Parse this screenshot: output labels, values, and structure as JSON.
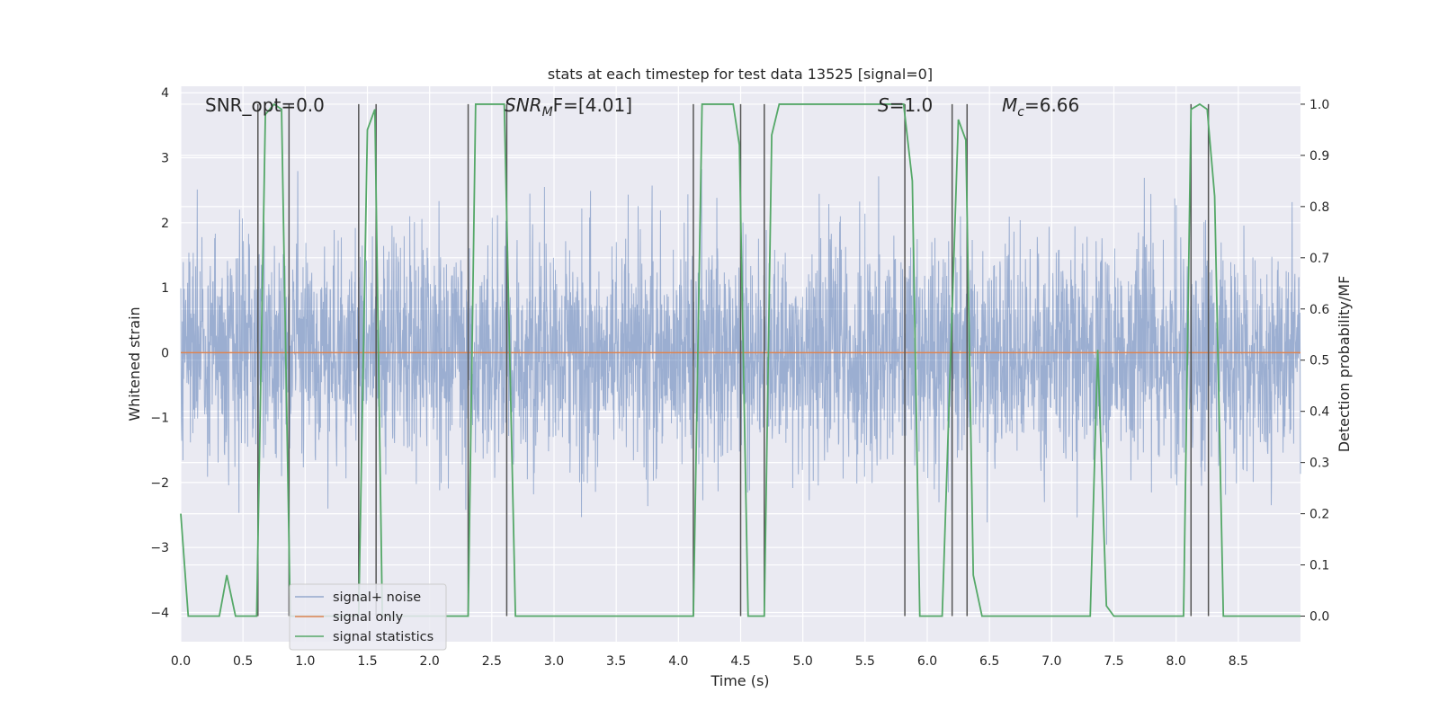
{
  "chart_data": {
    "type": "line",
    "title": "stats at each timestep for test data 13525 [signal=0]",
    "xlabel": "Time (s)",
    "ylabel": "Whitened strain",
    "y2label": "Detection probability/MF",
    "xlim": [
      0,
      9.0
    ],
    "ylim": [
      -4.45,
      4.1
    ],
    "y2lim": [
      -0.05,
      1.035
    ],
    "x_ticks": [
      0.0,
      0.5,
      1.0,
      1.5,
      2.0,
      2.5,
      3.0,
      3.5,
      4.0,
      4.5,
      5.0,
      5.5,
      6.0,
      6.5,
      7.0,
      7.5,
      8.0,
      8.5
    ],
    "x_tick_labels": [
      "0.0",
      "0.5",
      "1.0",
      "1.5",
      "2.0",
      "2.5",
      "3.0",
      "3.5",
      "4.0",
      "4.5",
      "5.0",
      "5.5",
      "6.0",
      "6.5",
      "7.0",
      "7.5",
      "8.0",
      "8.5"
    ],
    "y_ticks": [
      4,
      3,
      2,
      1,
      0,
      -1,
      -2,
      -3,
      -4
    ],
    "y_tick_labels": [
      "4",
      "3",
      "2",
      "1",
      "0",
      "−1",
      "−2",
      "−3",
      "−4"
    ],
    "y2_ticks": [
      1.0,
      0.9,
      0.8,
      0.7,
      0.6,
      0.5,
      0.4,
      0.3,
      0.2,
      0.1,
      0.0
    ],
    "y2_tick_labels": [
      "1.0",
      "0.9",
      "0.8",
      "0.7",
      "0.6",
      "0.5",
      "0.4",
      "0.3",
      "0.2",
      "0.1",
      "0.0"
    ],
    "annotations": {
      "snr_opt": "SNR_opt=0.0",
      "snr_mf_base": "SNR",
      "snr_mf_sub": "M",
      "snr_mf_rest": "F=[4.01]",
      "s_label": "S",
      "s_value": "=1.0",
      "mc_base": "M",
      "mc_sub": "c",
      "mc_value": "=6.66"
    },
    "noise_series": {
      "name": "signal+ noise",
      "color": "#4c72b0",
      "sigma": 0.85,
      "n_samples": 3600,
      "seed": 13525
    },
    "signal_series": {
      "name": "signal only",
      "color": "#dd8452",
      "value": 0.0
    },
    "stats_series": {
      "name": "signal statistics",
      "color": "#55a868",
      "x": [
        0.0,
        0.06,
        0.31,
        0.37,
        0.44,
        0.61,
        0.68,
        0.75,
        0.81,
        0.88,
        0.91,
        1.43,
        1.5,
        1.56,
        1.62,
        2.31,
        2.37,
        2.6,
        2.69,
        2.75,
        4.06,
        4.12,
        4.19,
        4.44,
        4.49,
        4.56,
        4.69,
        4.75,
        4.81,
        5.81,
        5.88,
        5.94,
        6.12,
        6.25,
        6.31,
        6.37,
        6.44,
        7.31,
        7.37,
        7.44,
        7.5,
        8.06,
        8.12,
        8.19,
        8.25,
        8.31,
        8.38,
        9.0
      ],
      "y": [
        0.2,
        0.0,
        0.0,
        0.08,
        0.0,
        0.0,
        0.98,
        1.0,
        0.99,
        0.0,
        0.0,
        0.0,
        0.95,
        0.99,
        0.0,
        0.0,
        1.0,
        1.0,
        0.0,
        0.0,
        0.0,
        0.0,
        1.0,
        1.0,
        0.92,
        0.0,
        0.0,
        0.94,
        1.0,
        1.0,
        0.85,
        0.0,
        0.0,
        0.97,
        0.93,
        0.08,
        0.0,
        0.0,
        0.52,
        0.02,
        0.0,
        0.0,
        0.99,
        1.0,
        0.99,
        0.82,
        0.0,
        0.0
      ]
    },
    "vertical_markers": {
      "color": "#555555",
      "x": [
        0.62,
        0.87,
        1.43,
        1.57,
        2.31,
        2.62,
        4.12,
        4.5,
        4.69,
        5.82,
        6.2,
        6.32,
        8.12,
        8.26
      ]
    },
    "legend": {
      "placement": "lower-left",
      "entries": [
        "signal+ noise",
        "signal only",
        "signal statistics"
      ]
    }
  }
}
